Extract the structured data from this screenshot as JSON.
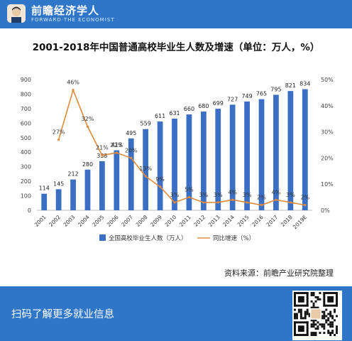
{
  "header": {
    "brand": "前瞻经济学人",
    "brand_en": "FORWARD·THE ECONOMIST"
  },
  "title": "2001-2018年中国普通高校毕业生人数及增速（单位：万人，%）",
  "source": "资料来源：前瞻产业研究院整理",
  "footer": {
    "text": "扫码了解更多就业信息"
  },
  "colors": {
    "bar": "#3a6fc4",
    "line": "#e08a3c",
    "brand": "#2f76c9"
  },
  "chart_data": {
    "type": "bar",
    "title": "2001-2018年中国普通高校毕业生人数及增速（单位：万人，%）",
    "categories": [
      "2001",
      "2002",
      "2003",
      "2004",
      "2005",
      "2006",
      "2007",
      "2008",
      "2009",
      "2010",
      "2011",
      "2012",
      "2013",
      "2014",
      "2015",
      "2016",
      "2017",
      "2018",
      "2019E"
    ],
    "series": [
      {
        "name": "全国高校毕业生人数（万人）",
        "type": "bar",
        "axis": "left",
        "values": [
          114,
          145,
          212,
          280,
          338,
          413,
          495,
          559,
          611,
          631,
          660,
          680,
          699,
          727,
          749,
          765,
          795,
          821,
          834
        ],
        "labels": [
          "114",
          "145",
          "212",
          "280",
          "338",
          "413",
          "495",
          "559",
          "611",
          "631",
          "660",
          "680",
          "699",
          "727",
          "749",
          "765",
          "795",
          "821",
          "834"
        ]
      },
      {
        "name": "同比增速（%）",
        "type": "line",
        "axis": "right",
        "values": [
          null,
          27,
          46,
          32,
          21,
          22,
          20,
          13,
          9,
          3,
          5,
          3,
          3,
          4,
          3,
          2,
          4,
          3,
          2
        ],
        "labels": [
          "",
          "27%",
          "46%",
          "32%",
          "21%",
          "22%",
          "20%",
          "13%",
          "9%",
          "3%",
          "5%",
          "3%",
          "3%",
          "4%",
          "3%",
          "2%",
          "4%",
          "3%",
          "2%"
        ]
      }
    ],
    "left_axis": {
      "ylim": [
        0,
        900
      ],
      "ticks": [
        "0",
        "100",
        "200",
        "300",
        "400",
        "500",
        "600",
        "700",
        "800",
        "900"
      ]
    },
    "right_axis": {
      "ylim": [
        0,
        50
      ],
      "ticks": [
        "0%",
        "10%",
        "20%",
        "30%",
        "40%",
        "50%"
      ]
    },
    "legend": {
      "position": "bottom"
    },
    "grid": false
  }
}
